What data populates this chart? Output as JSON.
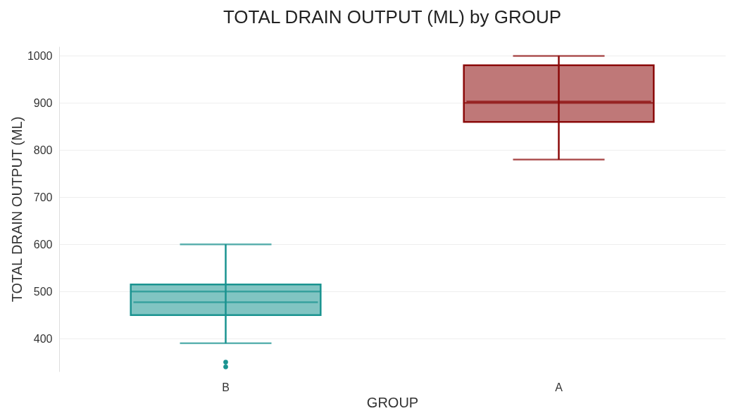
{
  "chart_data": {
    "type": "box",
    "title": "TOTAL DRAIN OUTPUT (ML) by GROUP",
    "xlabel": "GROUP",
    "ylabel": "TOTAL DRAIN OUTPUT (ML)",
    "categories": [
      "B",
      "A"
    ],
    "colors": [
      "#1a9390",
      "#8b0a0a"
    ],
    "boxes": [
      {
        "low": 390,
        "q1": 450,
        "median": 500,
        "q3": 515,
        "high": 600,
        "mean": 477,
        "outliers": [
          350,
          340
        ]
      },
      {
        "low": 780,
        "q1": 860,
        "median": 900,
        "q3": 980,
        "high": 1000,
        "mean": 903
      }
    ],
    "ylim": [
      330,
      1020
    ],
    "yticks": [
      400,
      500,
      600,
      700,
      800,
      900,
      1000
    ],
    "grid": "y",
    "legend": false
  }
}
